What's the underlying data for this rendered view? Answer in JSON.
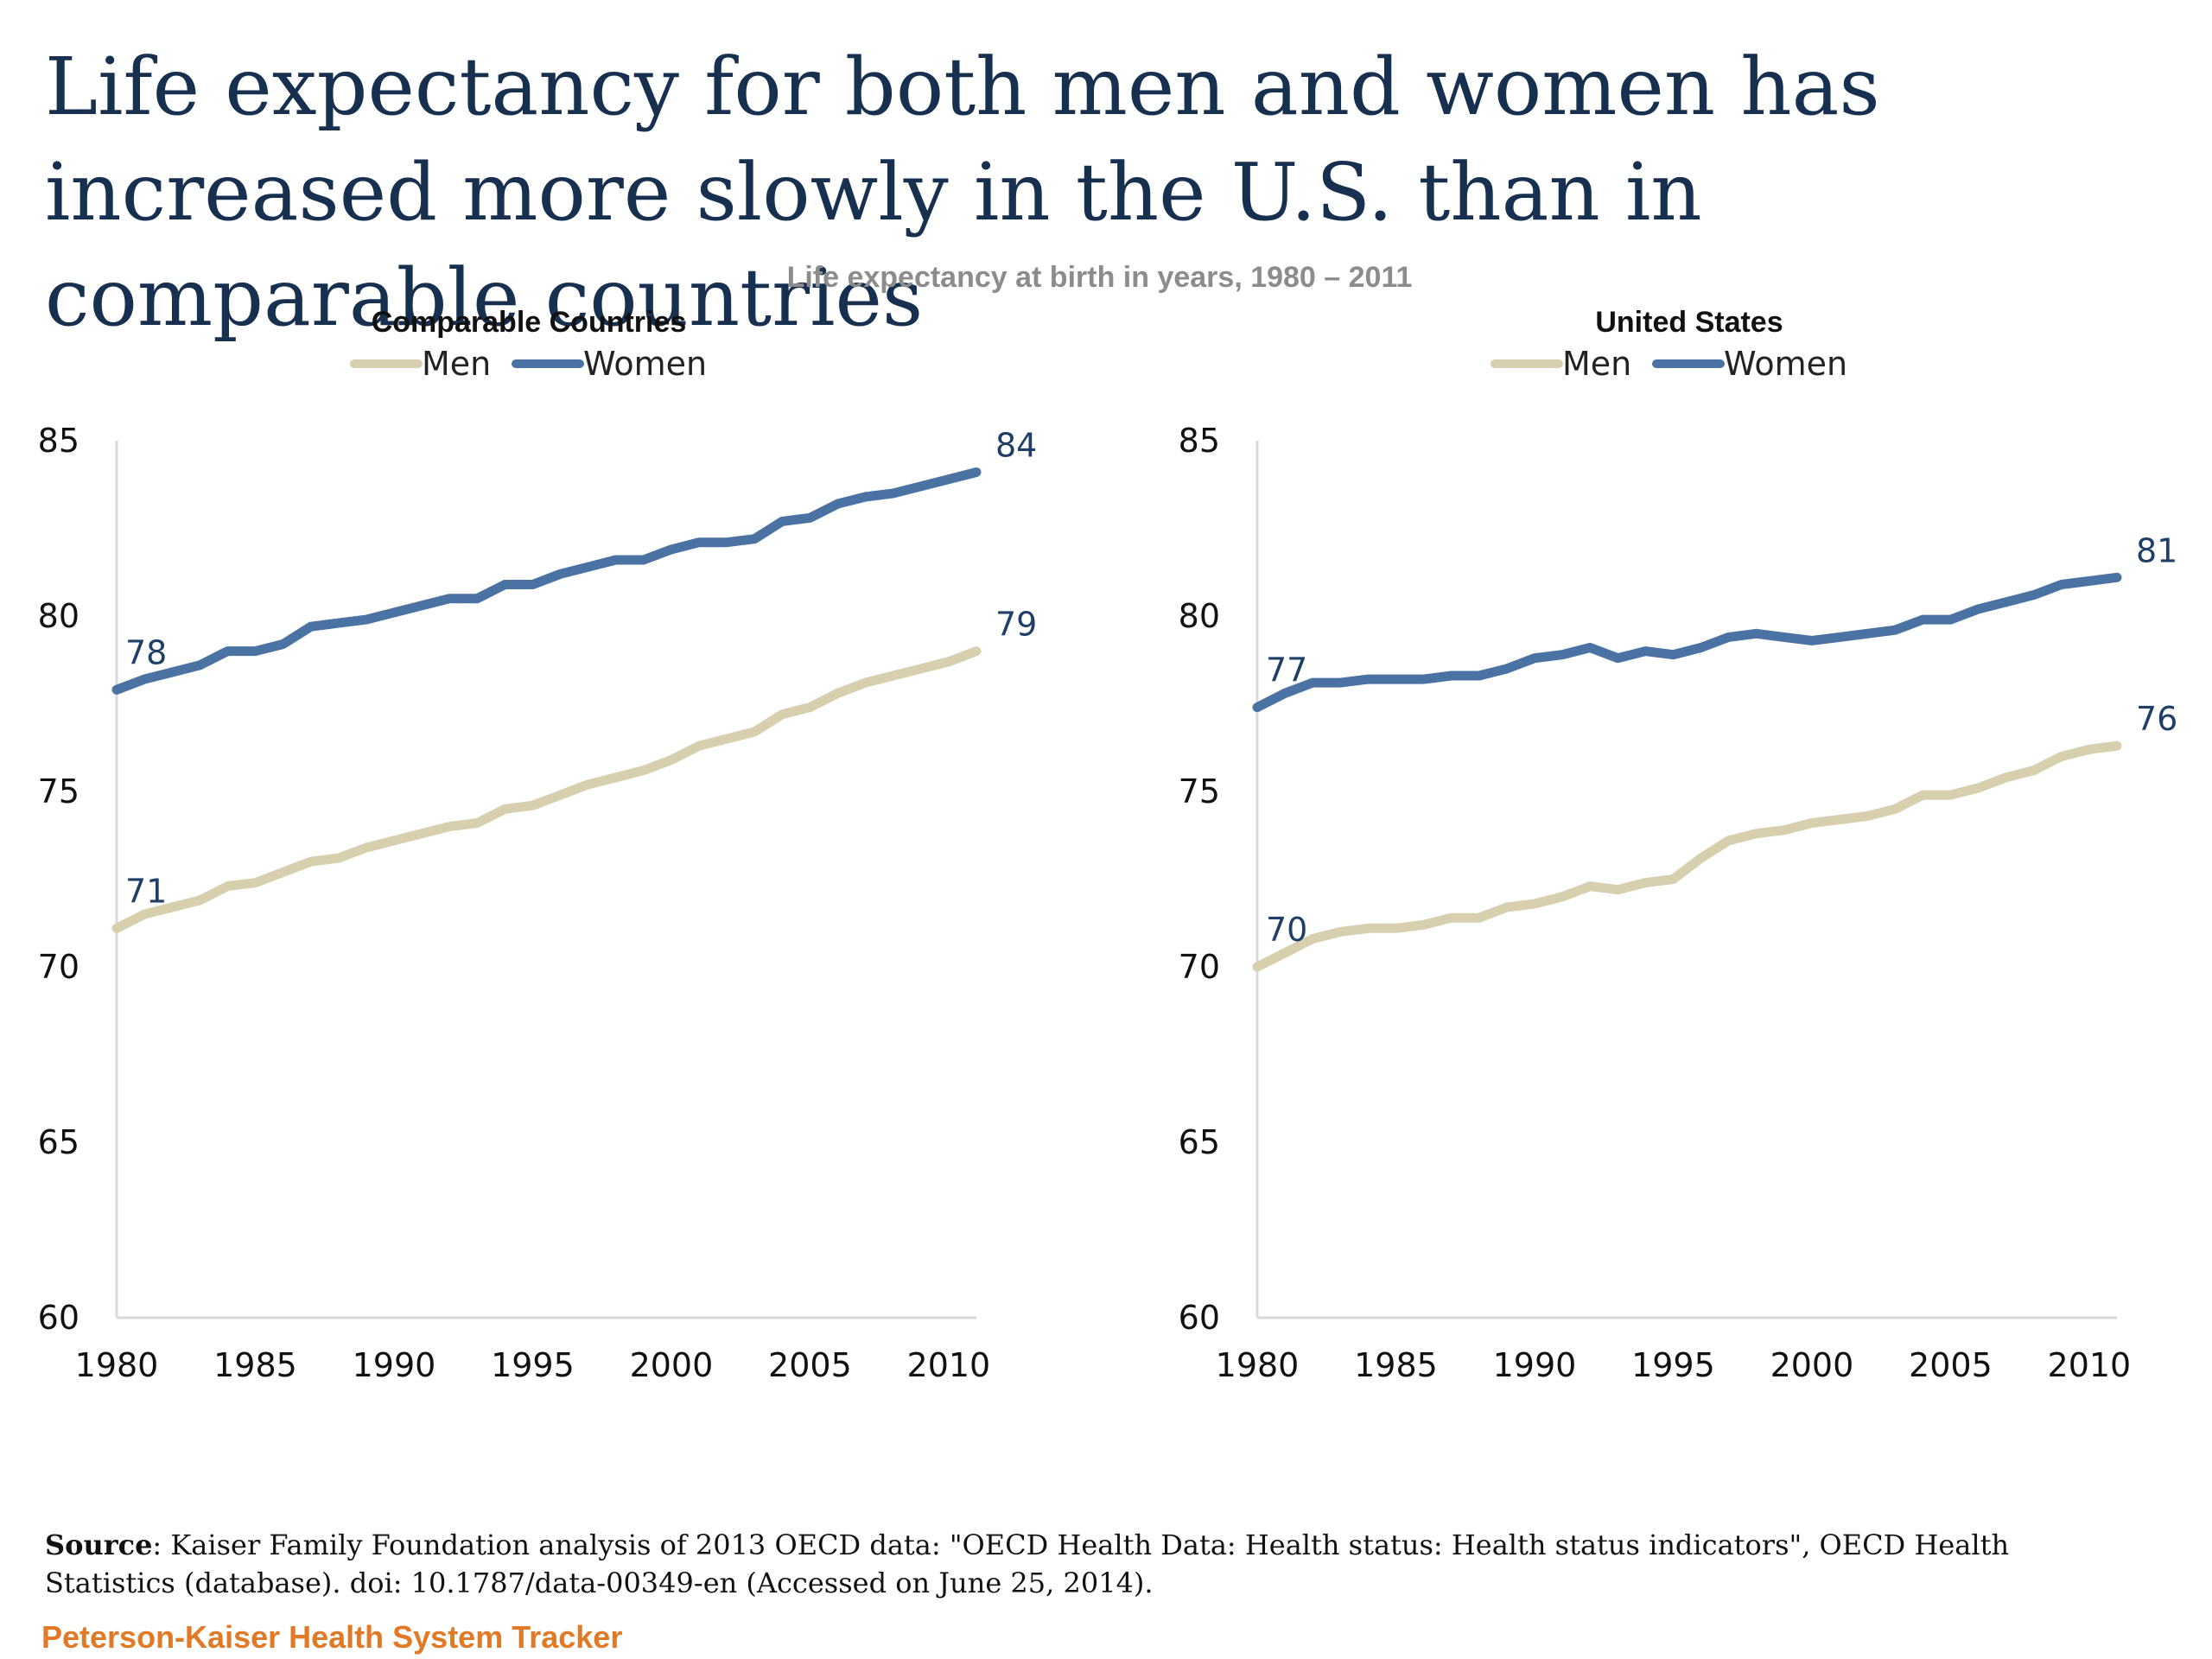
{
  "title": "Life expectancy for both men and women has increased more slowly in the U.S. than in comparable countries",
  "subtitle": "Life expectancy at birth in years, 1980 – 2011",
  "source_label": "Source",
  "source_text": ": Kaiser Family Foundation analysis of 2013 OECD data: \"OECD Health Data: Health status: Health status indicators\", OECD Health Statistics (database).  doi: 10.1787/data-00349-en (Accessed on June 25, 2014).",
  "brand": "Peterson-Kaiser Health System Tracker",
  "colors": {
    "men": "#d8cfae",
    "women": "#4a72a3",
    "label": "#1f3f66"
  },
  "chart_data": [
    {
      "type": "line",
      "title": "Comparable Countries",
      "ylim": [
        60,
        85
      ],
      "xlim": [
        1980,
        2011
      ],
      "yticks": [
        60,
        65,
        70,
        75,
        80,
        85
      ],
      "xticks": [
        1980,
        1985,
        1990,
        1995,
        2000,
        2005,
        2010
      ],
      "legend": "top-center",
      "grid": false,
      "x": [
        1980,
        1981,
        1982,
        1983,
        1984,
        1985,
        1986,
        1987,
        1988,
        1989,
        1990,
        1991,
        1992,
        1993,
        1994,
        1995,
        1996,
        1997,
        1998,
        1999,
        2000,
        2001,
        2002,
        2003,
        2004,
        2005,
        2006,
        2007,
        2008,
        2009,
        2010,
        2011
      ],
      "series": [
        {
          "name": "Men",
          "color": "#d8cfae",
          "values": [
            71.1,
            71.5,
            71.7,
            71.9,
            72.3,
            72.4,
            72.7,
            73.0,
            73.1,
            73.4,
            73.6,
            73.8,
            74.0,
            74.1,
            74.5,
            74.6,
            74.9,
            75.2,
            75.4,
            75.6,
            75.9,
            76.3,
            76.5,
            76.7,
            77.2,
            77.4,
            77.8,
            78.1,
            78.3,
            78.5,
            78.7,
            79.0
          ],
          "end_labels": [
            "71",
            "79"
          ]
        },
        {
          "name": "Women",
          "color": "#4a72a3",
          "values": [
            77.9,
            78.2,
            78.4,
            78.6,
            79.0,
            79.0,
            79.2,
            79.7,
            79.8,
            79.9,
            80.1,
            80.3,
            80.5,
            80.5,
            80.9,
            80.9,
            81.2,
            81.4,
            81.6,
            81.6,
            81.9,
            82.1,
            82.1,
            82.2,
            82.7,
            82.8,
            83.2,
            83.4,
            83.5,
            83.7,
            83.9,
            84.1
          ],
          "end_labels": [
            "78",
            "84"
          ]
        }
      ]
    },
    {
      "type": "line",
      "title": "United States",
      "ylim": [
        60,
        85
      ],
      "xlim": [
        1980,
        2011
      ],
      "yticks": [
        60,
        65,
        70,
        75,
        80,
        85
      ],
      "xticks": [
        1980,
        1985,
        1990,
        1995,
        2000,
        2005,
        2010
      ],
      "legend": "top-center",
      "grid": false,
      "x": [
        1980,
        1981,
        1982,
        1983,
        1984,
        1985,
        1986,
        1987,
        1988,
        1989,
        1990,
        1991,
        1992,
        1993,
        1994,
        1995,
        1996,
        1997,
        1998,
        1999,
        2000,
        2001,
        2002,
        2003,
        2004,
        2005,
        2006,
        2007,
        2008,
        2009,
        2010,
        2011
      ],
      "series": [
        {
          "name": "Men",
          "color": "#d8cfae",
          "values": [
            70.0,
            70.4,
            70.8,
            71.0,
            71.1,
            71.1,
            71.2,
            71.4,
            71.4,
            71.7,
            71.8,
            72.0,
            72.3,
            72.2,
            72.4,
            72.5,
            73.1,
            73.6,
            73.8,
            73.9,
            74.1,
            74.2,
            74.3,
            74.5,
            74.9,
            74.9,
            75.1,
            75.4,
            75.6,
            76.0,
            76.2,
            76.3
          ],
          "end_labels": [
            "70",
            "76"
          ]
        },
        {
          "name": "Women",
          "color": "#4a72a3",
          "values": [
            77.4,
            77.8,
            78.1,
            78.1,
            78.2,
            78.2,
            78.2,
            78.3,
            78.3,
            78.5,
            78.8,
            78.9,
            79.1,
            78.8,
            79.0,
            78.9,
            79.1,
            79.4,
            79.5,
            79.4,
            79.3,
            79.4,
            79.5,
            79.6,
            79.9,
            79.9,
            80.2,
            80.4,
            80.6,
            80.9,
            81.0,
            81.1
          ],
          "end_labels": [
            "77",
            "81"
          ]
        }
      ]
    }
  ]
}
